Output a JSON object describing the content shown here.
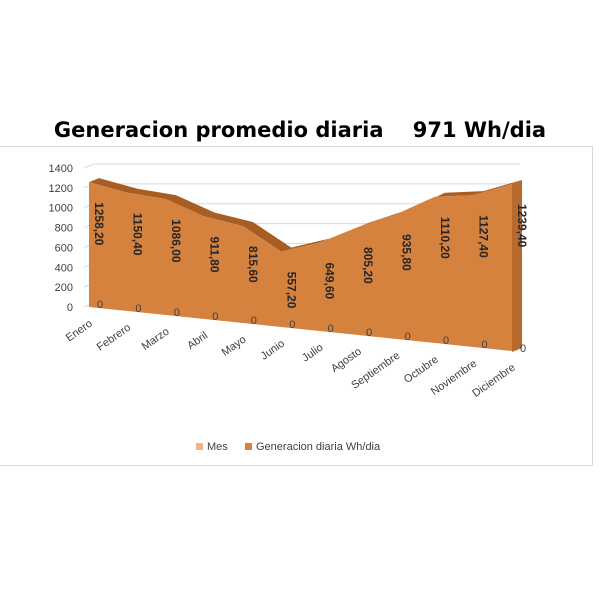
{
  "chart_data": {
    "type": "area",
    "title": "Generacion promedio diaria    971 Wh/dia",
    "categories": [
      "Enero",
      "Febrero",
      "Marzo",
      "Abril",
      "Mayo",
      "Junio",
      "Julio",
      "Agosto",
      "Septiembre",
      "Octubre",
      "Noviembre",
      "Diciembre"
    ],
    "series": [
      {
        "name": "Mes",
        "values": [
          0,
          0,
          0,
          0,
          0,
          0,
          0,
          0,
          0,
          0,
          0,
          0
        ],
        "labels": [
          "0",
          "0",
          "0",
          "0",
          "0",
          "0",
          "0",
          "0",
          "0",
          "0",
          "0",
          "0"
        ],
        "color": "#f4b183"
      },
      {
        "name": "Generacion diaria Wh/dia",
        "values": [
          1258.2,
          1150.4,
          1086.0,
          911.8,
          815.6,
          557.2,
          649.6,
          805.2,
          935.8,
          1110.2,
          1127.4,
          1239.4
        ],
        "labels": [
          "1258,20",
          "1150,40",
          "1086,00",
          "911,80",
          "815,60",
          "557,20",
          "649,60",
          "805,20",
          "935,80",
          "1110,20",
          "1127,40",
          "1239,40"
        ],
        "color": "#d5823f"
      }
    ],
    "ylim": [
      0,
      1400
    ],
    "yticks": [
      "0",
      "200",
      "400",
      "600",
      "800",
      "1000",
      "1200",
      "1400"
    ],
    "grid": true,
    "legend": "bottom",
    "style": "3d-area"
  }
}
